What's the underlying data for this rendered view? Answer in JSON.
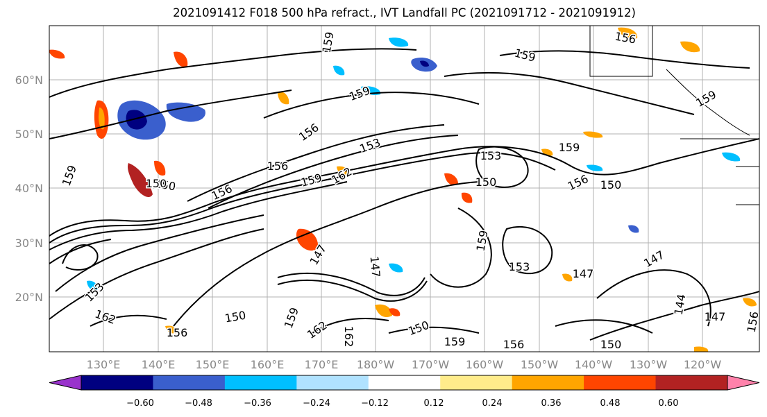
{
  "title": "2021091412 F018 500 hPa refract., IVT Landfall PC (2021091712 - 2021091912)",
  "map": {
    "lat_labels": [
      "60°N",
      "50°N",
      "40°N",
      "30°N",
      "20°N"
    ],
    "lon_labels": [
      "130°E",
      "140°E",
      "150°E",
      "160°E",
      "170°E",
      "180°W",
      "170°W",
      "160°W",
      "150°W",
      "140°W",
      "130°W",
      "120°W"
    ],
    "contour_labels": [
      "159",
      "159",
      "159",
      "156",
      "156",
      "153",
      "159",
      "156",
      "150",
      "159",
      "162",
      "153",
      "150",
      "156",
      "150",
      "153",
      "147",
      "159",
      "147",
      "147",
      "153",
      "162",
      "150",
      "159",
      "162",
      "162",
      "150",
      "159",
      "156",
      "150",
      "147",
      "144",
      "147",
      "156",
      "159",
      "150",
      "156",
      "156",
      "159"
    ]
  },
  "colorbar": {
    "tick_labels": [
      "−0.60",
      "−0.48",
      "−0.36",
      "−0.24",
      "−0.12",
      "0.12",
      "0.24",
      "0.36",
      "0.48",
      "0.60"
    ],
    "colors": [
      "#9932cc",
      "#000080",
      "#3a5fcd",
      "#00bfff",
      "#b0e2ff",
      "#ffffff",
      "#ffec8b",
      "#ffa500",
      "#ff4500",
      "#b22222",
      "#ff82ab"
    ]
  }
}
